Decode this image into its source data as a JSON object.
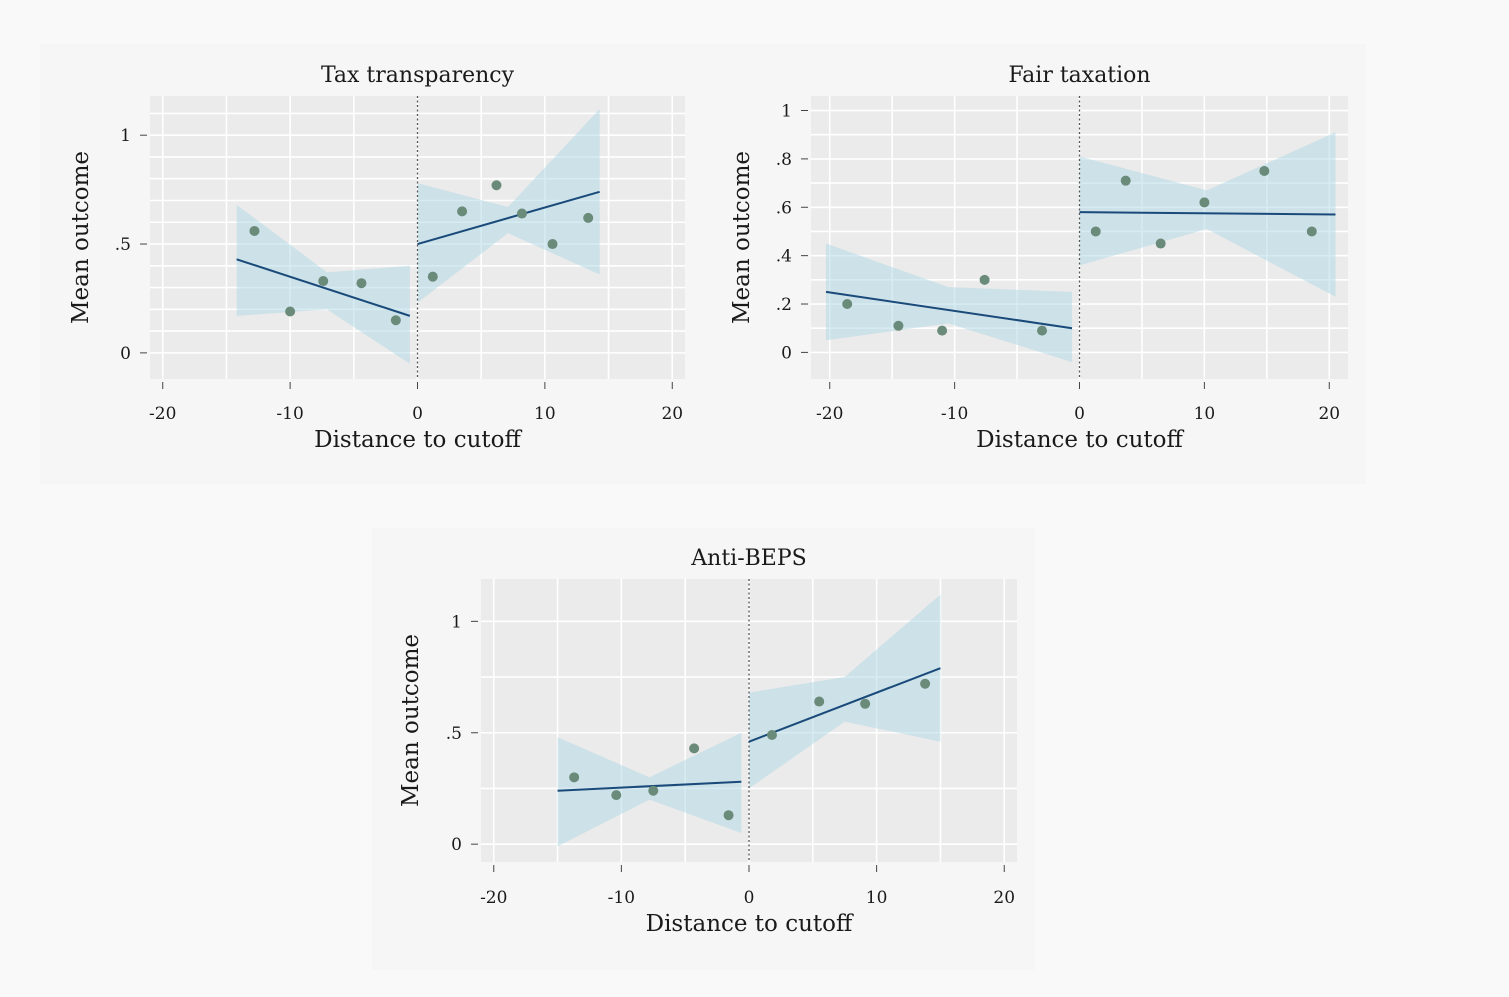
{
  "chart_data": [
    {
      "type": "scatter",
      "title": "Tax transparency",
      "xlabel": "Distance to cutoff",
      "ylabel": "Mean outcome",
      "xlim": [
        -21,
        21
      ],
      "ylim": [
        -0.12,
        1.18
      ],
      "xticks": [
        -20,
        -10,
        0,
        10,
        20
      ],
      "xtick_labels": [
        "-20",
        "-10",
        "0",
        "10",
        "20"
      ],
      "yticks": [
        0,
        0.5,
        1
      ],
      "ytick_labels": [
        "0",
        ".5",
        "1"
      ],
      "xgrid": [
        -20,
        -15,
        -10,
        -5,
        0,
        5,
        10,
        15,
        20
      ],
      "ygrid": [
        0,
        0.1,
        0.2,
        0.3,
        0.4,
        0.5,
        0.6,
        0.7,
        0.8,
        0.9,
        1.0,
        1.1
      ],
      "cutoff": 0,
      "points": [
        {
          "x": -12.8,
          "y": 0.56
        },
        {
          "x": -10.0,
          "y": 0.19
        },
        {
          "x": -7.4,
          "y": 0.33
        },
        {
          "x": -4.4,
          "y": 0.32
        },
        {
          "x": -1.7,
          "y": 0.15
        },
        {
          "x": 1.2,
          "y": 0.35
        },
        {
          "x": 3.5,
          "y": 0.65
        },
        {
          "x": 6.2,
          "y": 0.77
        },
        {
          "x": 8.2,
          "y": 0.64
        },
        {
          "x": 10.6,
          "y": 0.5
        },
        {
          "x": 13.4,
          "y": 0.62
        }
      ],
      "fits": [
        {
          "x": [
            -14.2,
            -0.6
          ],
          "y": [
            0.43,
            0.17
          ]
        },
        {
          "x": [
            0.0,
            14.3
          ],
          "y": [
            0.5,
            0.74
          ]
        }
      ],
      "bands": [
        {
          "x": [
            -14.2,
            -7.1,
            -0.6
          ],
          "lower": [
            0.17,
            0.2,
            -0.05
          ],
          "upper": [
            0.68,
            0.37,
            0.4
          ]
        },
        {
          "x": [
            0.0,
            7.1,
            14.3
          ],
          "lower": [
            0.23,
            0.55,
            0.36
          ],
          "upper": [
            0.78,
            0.67,
            1.12
          ]
        }
      ]
    },
    {
      "type": "scatter",
      "title": "Fair taxation",
      "xlabel": "Distance to cutoff",
      "ylabel": "Mean outcome",
      "xlim": [
        -21.5,
        21.5
      ],
      "ylim": [
        -0.11,
        1.06
      ],
      "xticks": [
        -20,
        -10,
        0,
        10,
        20
      ],
      "xtick_labels": [
        "-20",
        "-10",
        "0",
        "10",
        "20"
      ],
      "yticks": [
        0,
        0.2,
        0.4,
        0.6,
        0.8,
        1
      ],
      "ytick_labels": [
        "0",
        ".2",
        ".4",
        ".6",
        ".8",
        "1"
      ],
      "xgrid": [
        -20,
        -15,
        -10,
        -5,
        0,
        5,
        10,
        15,
        20
      ],
      "ygrid": [
        0,
        0.1,
        0.2,
        0.3,
        0.4,
        0.5,
        0.6,
        0.7,
        0.8,
        0.9,
        1.0
      ],
      "cutoff": 0,
      "points": [
        {
          "x": -18.6,
          "y": 0.2
        },
        {
          "x": -14.5,
          "y": 0.11
        },
        {
          "x": -11.0,
          "y": 0.09
        },
        {
          "x": -7.6,
          "y": 0.3
        },
        {
          "x": -3.0,
          "y": 0.09
        },
        {
          "x": 1.3,
          "y": 0.5
        },
        {
          "x": 3.7,
          "y": 0.71
        },
        {
          "x": 6.5,
          "y": 0.45
        },
        {
          "x": 10.0,
          "y": 0.62
        },
        {
          "x": 14.8,
          "y": 0.75
        },
        {
          "x": 18.6,
          "y": 0.5
        }
      ],
      "fits": [
        {
          "x": [
            -20.3,
            -0.6
          ],
          "y": [
            0.25,
            0.1
          ]
        },
        {
          "x": [
            0.0,
            20.5
          ],
          "y": [
            0.58,
            0.57
          ]
        }
      ],
      "bands": [
        {
          "x": [
            -20.3,
            -10.5,
            -0.6
          ],
          "lower": [
            0.05,
            0.12,
            -0.04
          ],
          "upper": [
            0.45,
            0.27,
            0.25
          ]
        },
        {
          "x": [
            0.0,
            10.2,
            20.5
          ],
          "lower": [
            0.36,
            0.51,
            0.23
          ],
          "upper": [
            0.81,
            0.67,
            0.91
          ]
        }
      ]
    },
    {
      "type": "scatter",
      "title": "Anti-BEPS",
      "xlabel": "Distance to cutoff",
      "ylabel": "Mean outcome",
      "xlim": [
        -21,
        21
      ],
      "ylim": [
        -0.08,
        1.19
      ],
      "xticks": [
        -20,
        -10,
        0,
        10,
        20
      ],
      "xtick_labels": [
        "-20",
        "-10",
        "0",
        "10",
        "20"
      ],
      "yticks": [
        0,
        0.5,
        1
      ],
      "ytick_labels": [
        "0",
        ".5",
        "1"
      ],
      "xgrid": [
        -20,
        -15,
        -10,
        -5,
        0,
        5,
        10,
        15,
        20
      ],
      "ygrid": [
        0,
        0.25,
        0.5,
        0.75,
        1.0
      ],
      "cutoff": 0,
      "points": [
        {
          "x": -13.7,
          "y": 0.3
        },
        {
          "x": -10.4,
          "y": 0.22
        },
        {
          "x": -7.5,
          "y": 0.24
        },
        {
          "x": -4.3,
          "y": 0.43
        },
        {
          "x": -1.6,
          "y": 0.13
        },
        {
          "x": 1.8,
          "y": 0.49
        },
        {
          "x": 5.5,
          "y": 0.64
        },
        {
          "x": 9.1,
          "y": 0.63
        },
        {
          "x": 13.8,
          "y": 0.72
        }
      ],
      "fits": [
        {
          "x": [
            -15.0,
            -0.6
          ],
          "y": [
            0.24,
            0.28
          ]
        },
        {
          "x": [
            0.0,
            15.0
          ],
          "y": [
            0.46,
            0.79
          ]
        }
      ],
      "bands": [
        {
          "x": [
            -15.0,
            -7.8,
            -0.6
          ],
          "lower": [
            -0.01,
            0.2,
            0.05
          ],
          "upper": [
            0.48,
            0.3,
            0.5
          ]
        },
        {
          "x": [
            0.0,
            7.5,
            15.0
          ],
          "lower": [
            0.25,
            0.55,
            0.46
          ],
          "upper": [
            0.68,
            0.75,
            1.12
          ]
        }
      ]
    }
  ]
}
